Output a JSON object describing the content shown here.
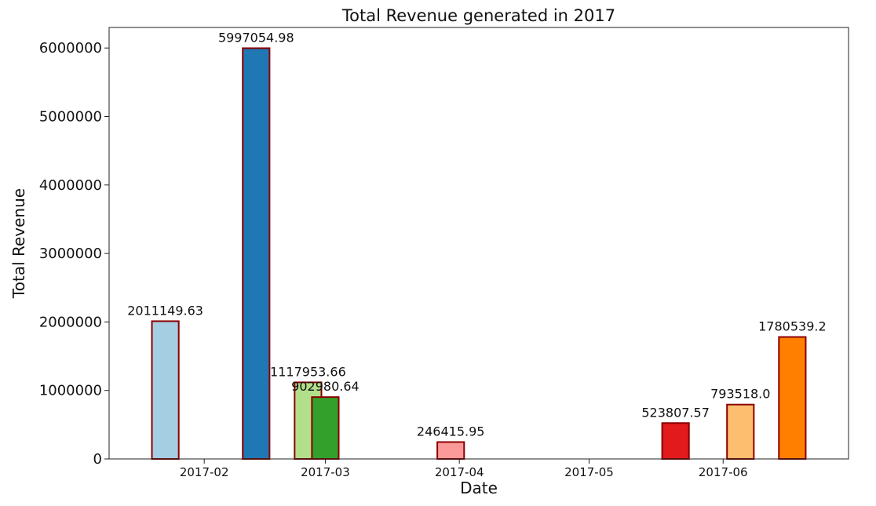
{
  "chart_data": {
    "type": "bar",
    "title": "Total Revenue generated in 2017",
    "xlabel": "Date",
    "ylabel": "Total Revenue",
    "ylim": [
      0,
      6300000
    ],
    "yticks": [
      0,
      1000000,
      2000000,
      3000000,
      4000000,
      5000000,
      6000000
    ],
    "ytick_labels": [
      "0",
      "1000000",
      "2000000",
      "3000000",
      "4000000",
      "5000000",
      "6000000"
    ],
    "x_axis": {
      "type": "date",
      "range_start": "2017-01-10",
      "range_end": "2017-06-30",
      "ticks": [
        "2017-02-01",
        "2017-03-01",
        "2017-04-01",
        "2017-05-01",
        "2017-06-01"
      ],
      "tick_labels": [
        "2017-02",
        "2017-03",
        "2017-04",
        "2017-05",
        "2017-06"
      ]
    },
    "grid": false,
    "bar_edge_color": "#8b0000",
    "bars": [
      {
        "date": "2017-01-23",
        "value": 2011149.63,
        "label": "2011149.63",
        "color": "#a6cee3"
      },
      {
        "date": "2017-02-13",
        "value": 5997054.98,
        "label": "5997054.98",
        "color": "#1f78b4"
      },
      {
        "date": "2017-02-25",
        "value": 1117953.66,
        "label": "1117953.66",
        "color": "#b2df8a"
      },
      {
        "date": "2017-03-01",
        "value": 902980.64,
        "label": "902980.64",
        "color": "#33a02c"
      },
      {
        "date": "2017-03-30",
        "value": 246415.95,
        "label": "246415.95",
        "color": "#fb9a99"
      },
      {
        "date": "2017-05-21",
        "value": 523807.57,
        "label": "523807.57",
        "color": "#e31a1c"
      },
      {
        "date": "2017-06-05",
        "value": 793518.0,
        "label": "793518.0",
        "color": "#fdbf6f"
      },
      {
        "date": "2017-06-17",
        "value": 1780539.2,
        "label": "1780539.2",
        "color": "#ff7f00"
      }
    ]
  }
}
